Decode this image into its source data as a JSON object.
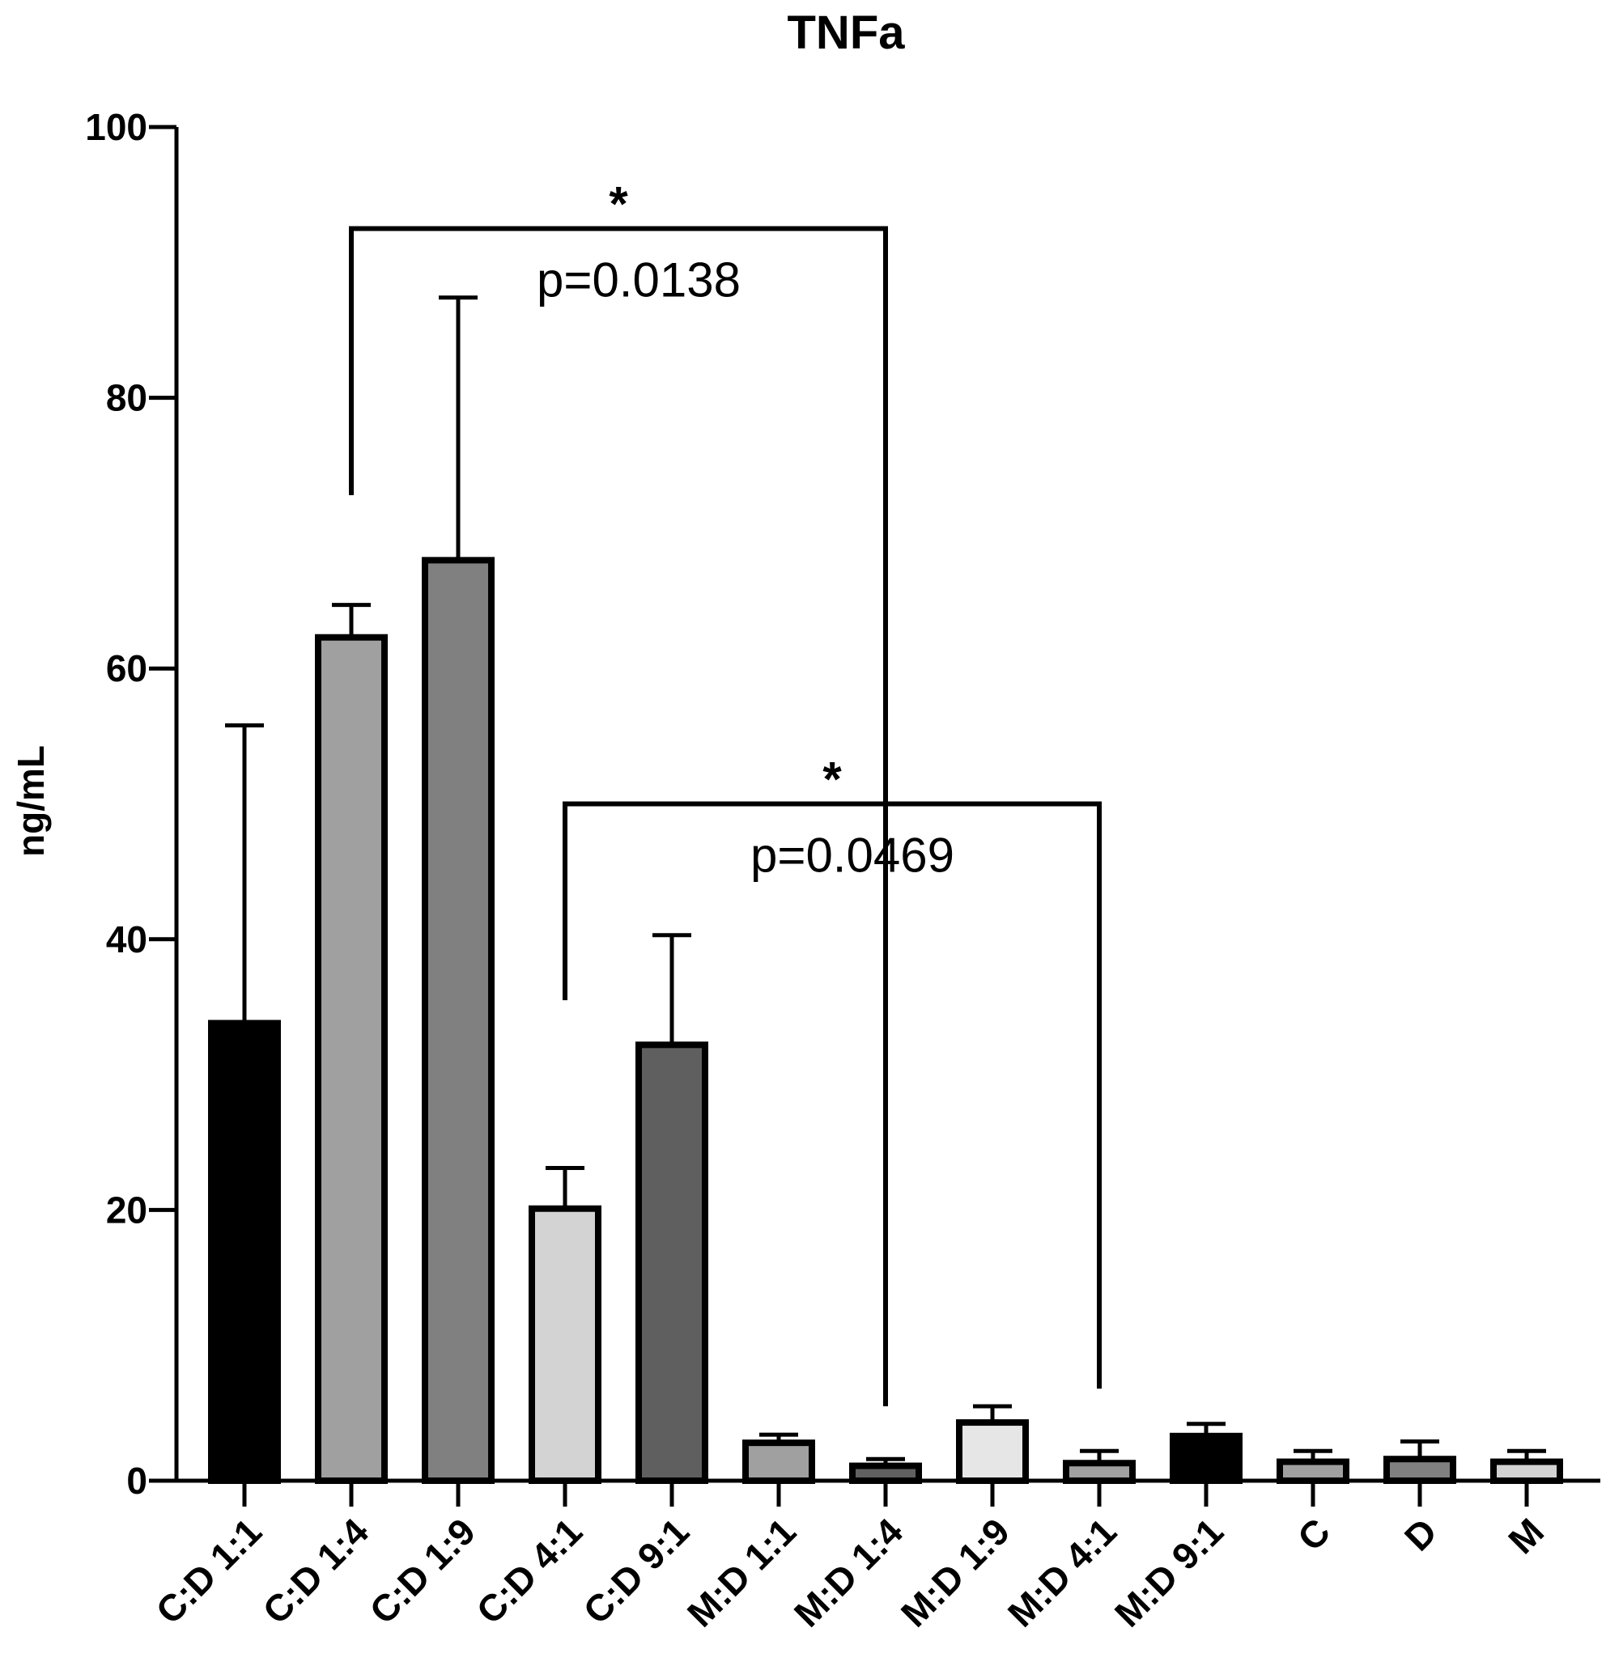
{
  "chart_data": {
    "type": "bar",
    "title": "TNFa",
    "xlabel": "",
    "ylabel": "ng/mL",
    "ylim": [
      0,
      100
    ],
    "yticks": [
      "0",
      "20",
      "40",
      "60",
      "80",
      "100"
    ],
    "grid": false,
    "categories": [
      "C:D 1:1",
      "C:D 1:4",
      "C:D 1:9",
      "C:D 4:1",
      "C:D 9:1",
      "M:D 1:1",
      "M:D 1:4",
      "M:D 1:9",
      "M:D 4:1",
      "M:D 9:1",
      "C",
      "D",
      "M"
    ],
    "values": [
      33.8,
      62.3,
      68.0,
      20.1,
      32.2,
      2.8,
      1.1,
      4.3,
      1.3,
      3.3,
      1.4,
      1.6,
      1.4
    ],
    "error_upper": [
      55.8,
      64.7,
      87.4,
      23.1,
      40.3,
      3.4,
      1.6,
      5.5,
      2.2,
      4.2,
      2.2,
      2.9,
      2.2
    ],
    "colors": [
      "#000000",
      "#a0a0a0",
      "#808080",
      "#d3d3d3",
      "#5f5f5f",
      "#a0a0a0",
      "#606060",
      "#e6e6e6",
      "#a0a0a0",
      "#000000",
      "#a0a0a0",
      "#808080",
      "#d3d3d3"
    ],
    "annotations": [
      {
        "from": "C:D 1:4",
        "to": "M:D 1:4",
        "y": 92.5,
        "left_end": 72.8,
        "right_end": 5.5,
        "star": "*",
        "label": "p=0.0138"
      },
      {
        "from": "C:D 4:1",
        "to": "M:D 4:1",
        "y": 50.0,
        "left_end": 35.5,
        "right_end": 6.8,
        "star": "*",
        "label": "p=0.0469"
      }
    ]
  }
}
